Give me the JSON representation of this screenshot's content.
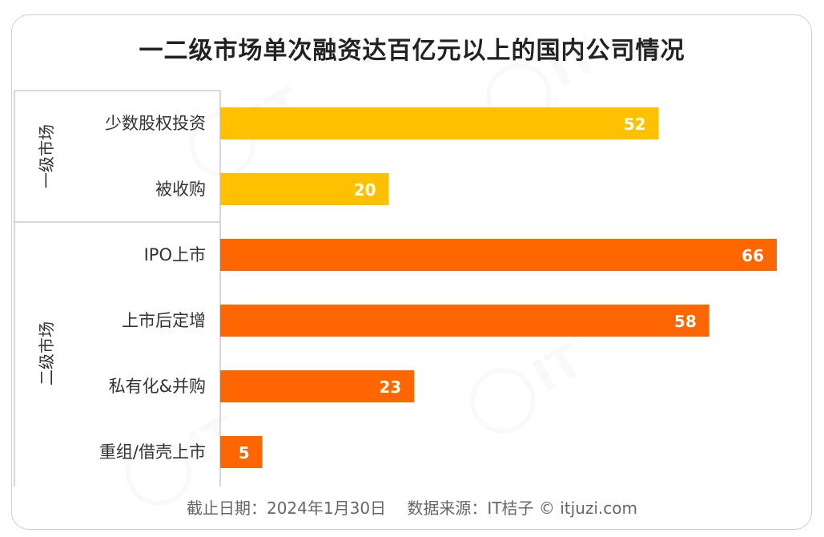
{
  "title": "一二级市场单次融资达百亿元以上的国内公司情况",
  "footer": {
    "date_text": "截止日期：2024年1月30日",
    "source_text": "数据来源：IT桔子 © itjuzi.com"
  },
  "colors": {
    "primary_market": "#FFC000",
    "secondary_market": "#FF6600"
  },
  "chart_data": {
    "type": "bar",
    "orientation": "horizontal",
    "title": "一二级市场单次融资达百亿元以上的国内公司情况",
    "groups": [
      {
        "name": "一级市场",
        "label": "一级市场",
        "color": "#FFC000",
        "categories": [
          "少数股权投资",
          "被收购"
        ],
        "values": [
          52,
          20
        ]
      },
      {
        "name": "二级市场",
        "label": "二级市场",
        "color": "#FF6600",
        "categories": [
          "IPO上市",
          "上市后定增",
          "私有化&并购",
          "重组/借壳上市"
        ],
        "values": [
          66,
          58,
          23,
          5
        ]
      }
    ],
    "xlim": [
      0,
      66
    ],
    "grid": false,
    "legend": "none"
  }
}
